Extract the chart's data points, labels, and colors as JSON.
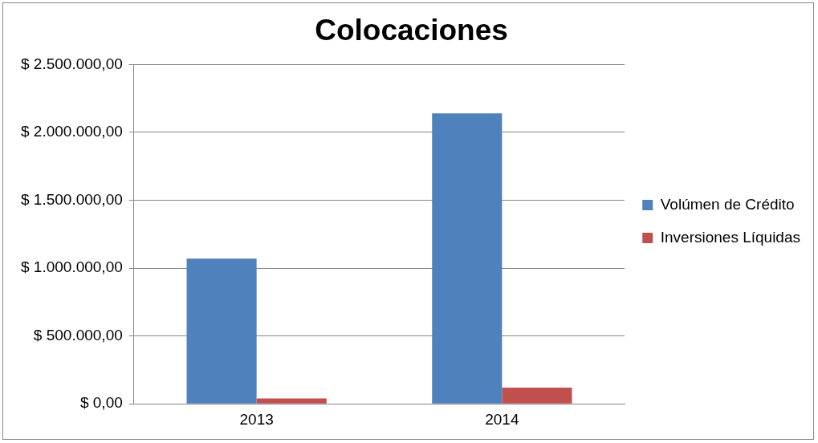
{
  "chart_data": {
    "type": "bar",
    "title": "Colocaciones",
    "categories": [
      "2013",
      "2014"
    ],
    "series": [
      {
        "name": "Volúmen de Crédito",
        "color": "#4f81bd",
        "values": [
          1070000,
          2140000
        ]
      },
      {
        "name": "Inversiones Líquidas",
        "color": "#c0504d",
        "values": [
          40000,
          120000
        ]
      }
    ],
    "ylim": [
      0,
      2500000
    ],
    "yticks": [
      {
        "value": 0,
        "label": "$ 0,00"
      },
      {
        "value": 500000,
        "label": "$ 500.000,00"
      },
      {
        "value": 1000000,
        "label": "$ 1.000.000,00"
      },
      {
        "value": 1500000,
        "label": "$ 1.500.000,00"
      },
      {
        "value": 2000000,
        "label": "$ 2.000.000,00"
      },
      {
        "value": 2500000,
        "label": "$ 2.500.000,00"
      }
    ],
    "grid": "y",
    "legend": "right"
  }
}
